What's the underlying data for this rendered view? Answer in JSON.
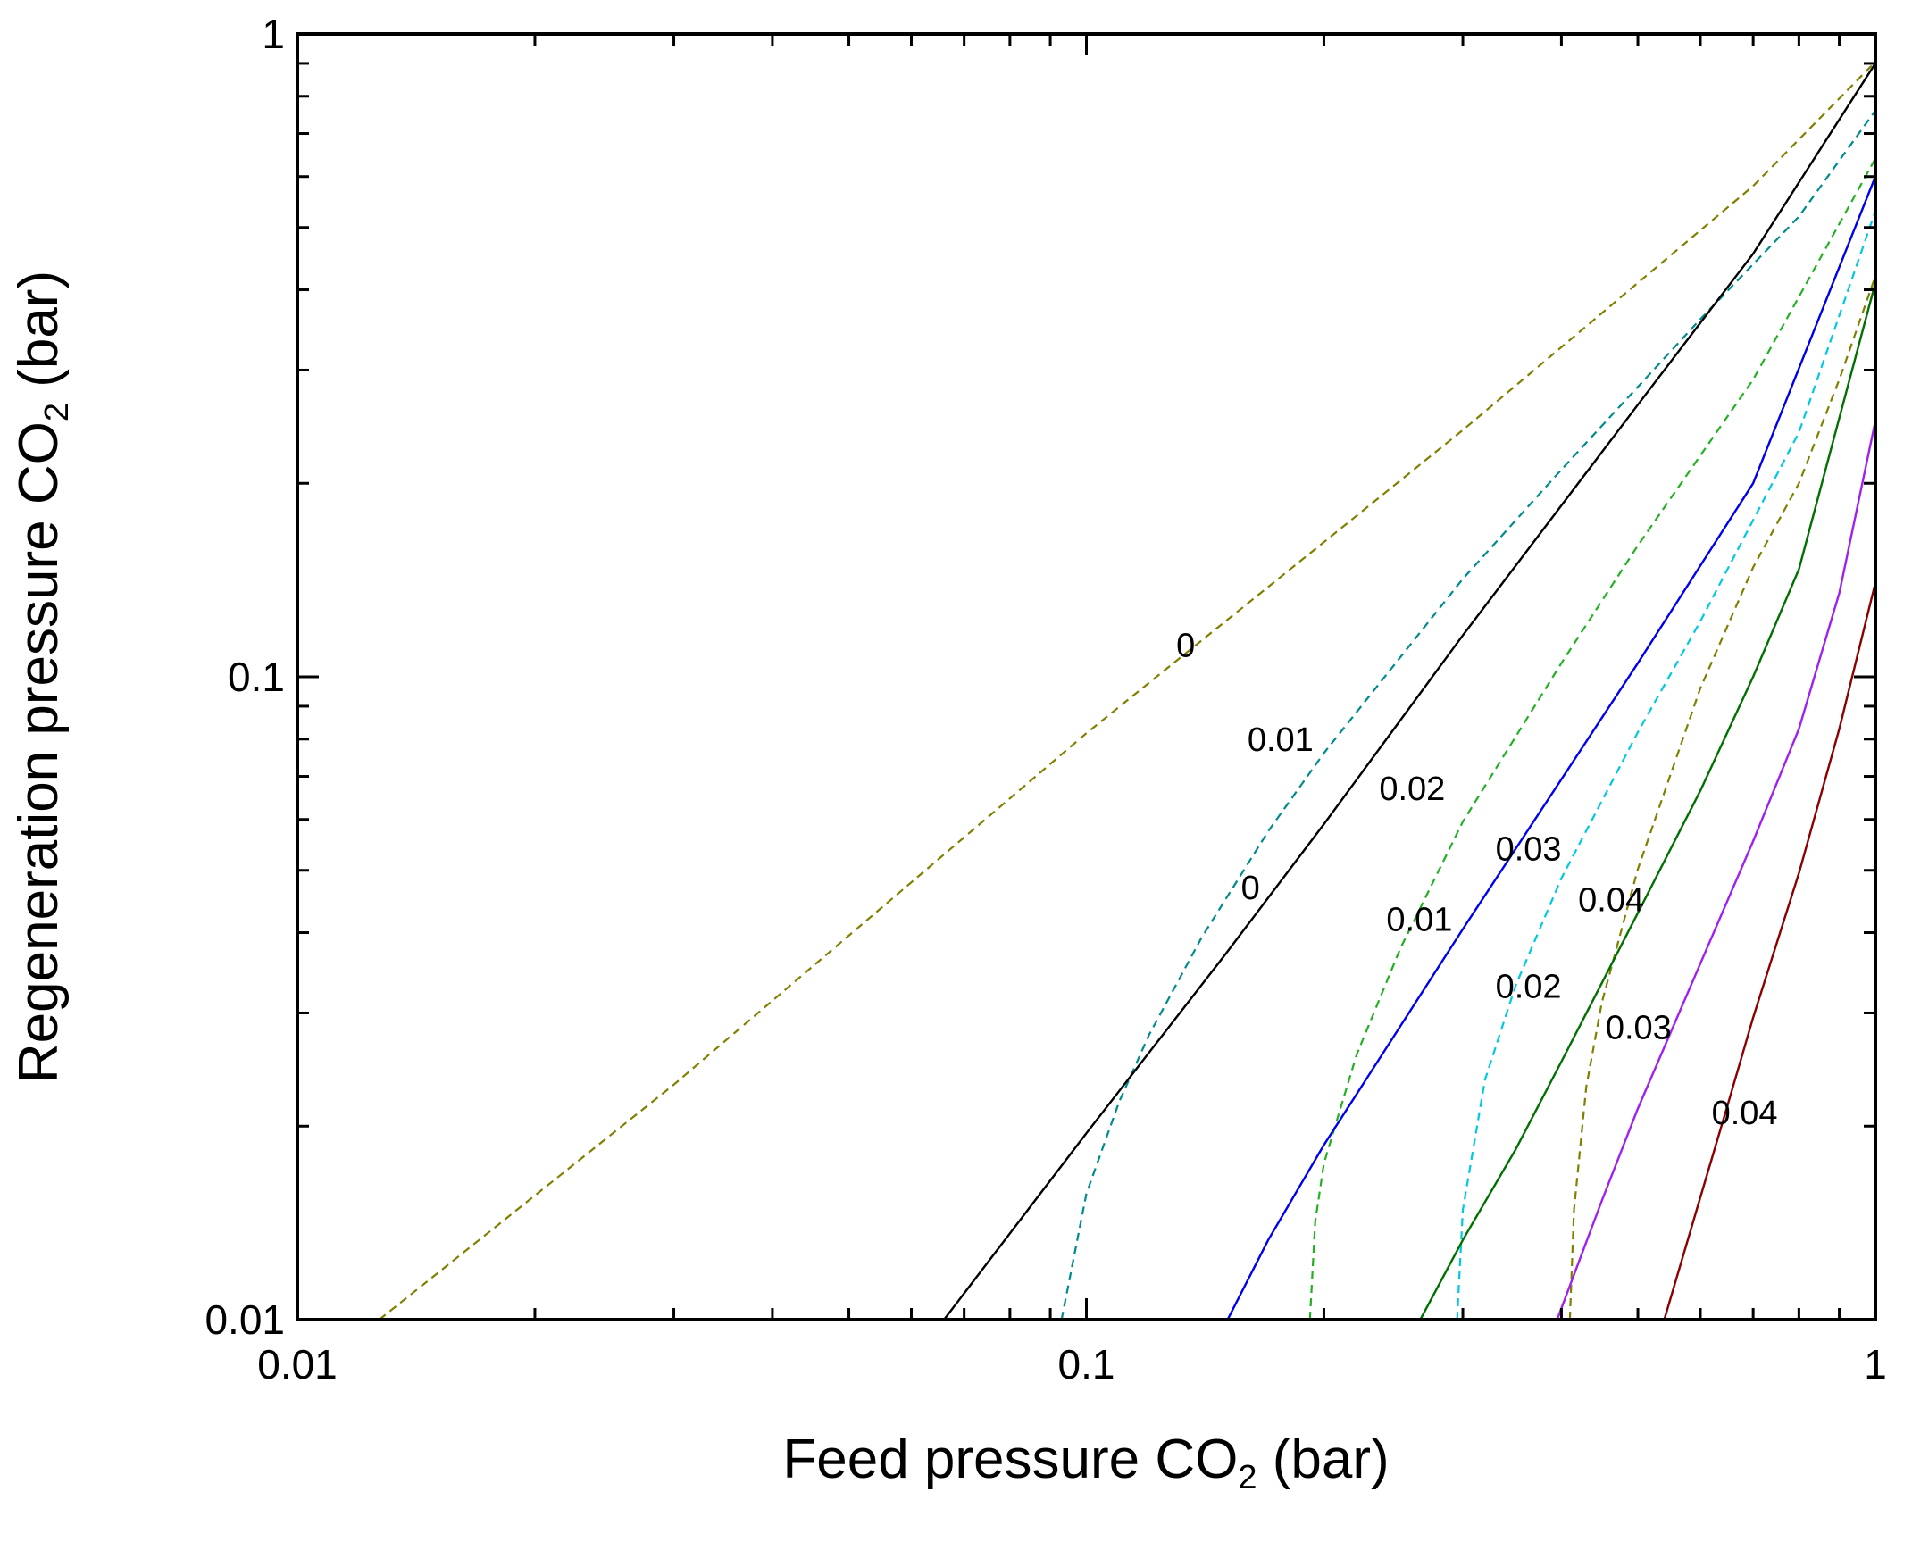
{
  "chart_data": {
    "type": "line",
    "xlabel": {
      "main": "Feed pressure CO",
      "sub": "2",
      "unit": " (bar)"
    },
    "ylabel": {
      "main": "Regeneration pressure CO",
      "sub": "2",
      "unit": " (bar)"
    },
    "xscale": "log",
    "yscale": "log",
    "xlim": [
      0.01,
      1
    ],
    "ylim": [
      0.01,
      1
    ],
    "xticks": [
      {
        "value": 0.01,
        "label": "0.01"
      },
      {
        "value": 0.1,
        "label": "0.1"
      },
      {
        "value": 1,
        "label": "1"
      }
    ],
    "yticks": [
      {
        "value": 0.01,
        "label": "0.01"
      },
      {
        "value": 0.1,
        "label": "0.1"
      },
      {
        "value": 1,
        "label": "1"
      }
    ],
    "grid": false,
    "series": [
      {
        "label": "0",
        "color": "#808000",
        "style": "dashed",
        "label_at": [
          0.13,
          0.112
        ],
        "points": [
          [
            0.0127,
            0.01
          ],
          [
            0.03,
            0.0232
          ],
          [
            0.1,
            0.0817
          ],
          [
            0.2,
            0.162
          ],
          [
            0.3,
            0.242
          ],
          [
            0.5,
            0.41
          ],
          [
            0.7,
            0.58
          ],
          [
            1.0,
            0.905
          ]
        ]
      },
      {
        "label": "0.01",
        "color": "#008B8B",
        "style": "dashed",
        "label_at": [
          0.16,
          0.08
        ],
        "points": [
          [
            0.093,
            0.01
          ],
          [
            0.1,
            0.0157
          ],
          [
            0.11,
            0.0218
          ],
          [
            0.12,
            0.0277
          ],
          [
            0.14,
            0.0393
          ],
          [
            0.17,
            0.0575
          ],
          [
            0.2,
            0.0761
          ],
          [
            0.3,
            0.142
          ],
          [
            0.4,
            0.21
          ],
          [
            0.6,
            0.36
          ],
          [
            0.8,
            0.52
          ],
          [
            1.0,
            0.76
          ]
        ]
      },
      {
        "label": "0.02",
        "color": "#22B022",
        "style": "dashed",
        "label_at": [
          0.235,
          0.067
        ],
        "points": [
          [
            0.192,
            0.01
          ],
          [
            0.195,
            0.0142
          ],
          [
            0.2,
            0.0175
          ],
          [
            0.22,
            0.0258
          ],
          [
            0.25,
            0.0378
          ],
          [
            0.3,
            0.0595
          ],
          [
            0.4,
            0.105
          ],
          [
            0.5,
            0.16
          ],
          [
            0.7,
            0.29
          ],
          [
            1.0,
            0.64
          ]
        ]
      },
      {
        "label": "0.03",
        "color": "#00C8E0",
        "style": "dashed",
        "label_at": [
          0.33,
          0.054
        ],
        "points": [
          [
            0.295,
            0.01
          ],
          [
            0.3,
            0.0148
          ],
          [
            0.32,
            0.0236
          ],
          [
            0.35,
            0.0331
          ],
          [
            0.4,
            0.0486
          ],
          [
            0.5,
            0.082
          ],
          [
            0.6,
            0.122
          ],
          [
            0.8,
            0.24
          ],
          [
            1.0,
            0.53
          ]
        ]
      },
      {
        "label": "0.04",
        "color": "#808000",
        "style": "dashed",
        "label_at": [
          0.42,
          0.045
        ],
        "points": [
          [
            0.41,
            0.01
          ],
          [
            0.415,
            0.0148
          ],
          [
            0.43,
            0.023
          ],
          [
            0.45,
            0.0311
          ],
          [
            0.5,
            0.0502
          ],
          [
            0.6,
            0.096
          ],
          [
            0.7,
            0.148
          ],
          [
            0.8,
            0.2
          ],
          [
            0.9,
            0.29
          ],
          [
            1.0,
            0.42
          ]
        ]
      },
      {
        "label": "0",
        "color": "#000000",
        "style": "solid",
        "label_at": [
          0.157,
          0.047
        ],
        "points": [
          [
            0.066,
            0.01
          ],
          [
            0.1,
            0.0195
          ],
          [
            0.15,
            0.037
          ],
          [
            0.2,
            0.059
          ],
          [
            0.3,
            0.116
          ],
          [
            0.5,
            0.265
          ],
          [
            0.7,
            0.455
          ],
          [
            1.0,
            0.9
          ]
        ]
      },
      {
        "label": "0.01",
        "color": "#0000EE",
        "style": "solid",
        "label_at": [
          0.24,
          0.042
        ],
        "points": [
          [
            0.151,
            0.01
          ],
          [
            0.17,
            0.0133
          ],
          [
            0.2,
            0.0187
          ],
          [
            0.3,
            0.0405
          ],
          [
            0.5,
            0.105
          ],
          [
            0.7,
            0.2
          ],
          [
            1.0,
            0.6
          ]
        ]
      },
      {
        "label": "0.02",
        "color": "#007000",
        "style": "solid",
        "label_at": [
          0.33,
          0.033
        ],
        "points": [
          [
            0.265,
            0.01
          ],
          [
            0.3,
            0.0133
          ],
          [
            0.35,
            0.0184
          ],
          [
            0.4,
            0.0252
          ],
          [
            0.5,
            0.0429
          ],
          [
            0.6,
            0.0665
          ],
          [
            0.7,
            0.1
          ],
          [
            0.8,
            0.147
          ],
          [
            1.0,
            0.41
          ]
        ]
      },
      {
        "label": "0.03",
        "color": "#A020F0",
        "style": "solid",
        "label_at": [
          0.455,
          0.0285
        ],
        "points": [
          [
            0.395,
            0.01
          ],
          [
            0.45,
            0.0153
          ],
          [
            0.5,
            0.0213
          ],
          [
            0.6,
            0.0358
          ],
          [
            0.7,
            0.0555
          ],
          [
            0.8,
            0.083
          ],
          [
            0.9,
            0.135
          ],
          [
            1.0,
            0.25
          ]
        ]
      },
      {
        "label": "0.04",
        "color": "#8B0000",
        "style": "solid",
        "label_at": [
          0.62,
          0.021
        ],
        "points": [
          [
            0.54,
            0.01
          ],
          [
            0.6,
            0.0155
          ],
          [
            0.65,
            0.0216
          ],
          [
            0.7,
            0.0295
          ],
          [
            0.8,
            0.0495
          ],
          [
            0.9,
            0.083
          ],
          [
            1.0,
            0.14
          ]
        ]
      }
    ]
  }
}
